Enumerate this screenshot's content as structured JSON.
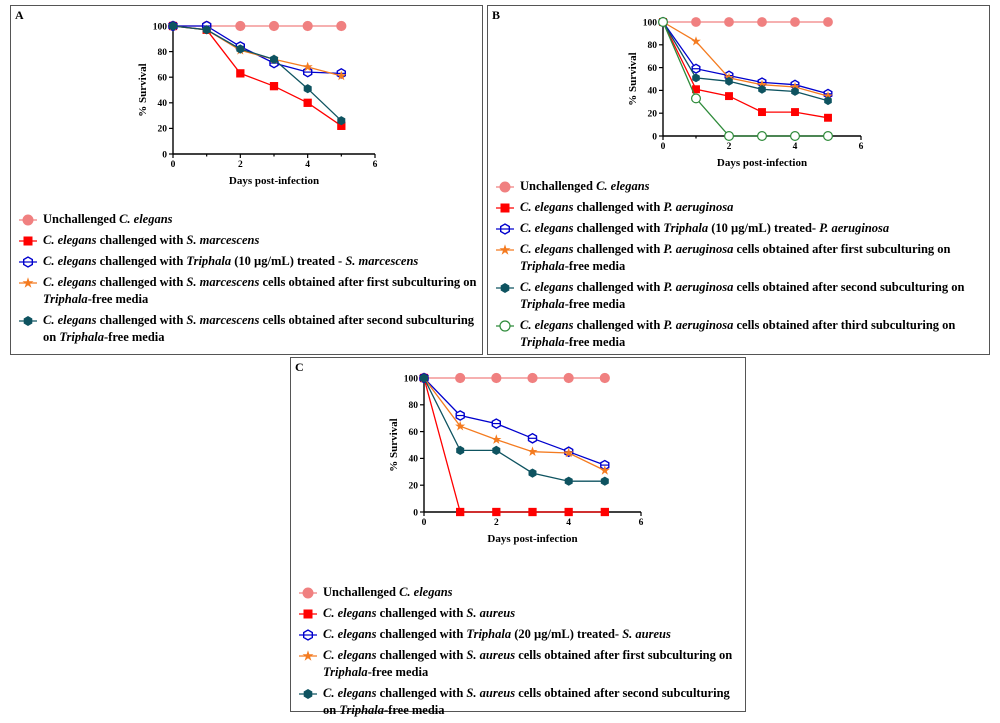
{
  "panels": [
    {
      "letter": "A",
      "chart_data": {
        "type": "line",
        "xlabel": "Days post-infection",
        "ylabel": "% Survival",
        "xlim": [
          0,
          6
        ],
        "ylim": [
          0,
          100
        ],
        "xticks": [
          "0",
          "2",
          "4",
          "6"
        ],
        "yticks": [
          "0",
          "20",
          "40",
          "60",
          "80",
          "100"
        ],
        "series": [
          {
            "key": "unchallenged",
            "x": [
              0,
              1,
              2,
              3,
              4,
              5
            ],
            "y": [
              100,
              100,
              100,
              100,
              100,
              100
            ]
          },
          {
            "key": "challenged",
            "x": [
              0,
              1,
              2,
              3,
              4,
              5
            ],
            "y": [
              100,
              97,
              63,
              53,
              40,
              22
            ]
          },
          {
            "key": "treated",
            "x": [
              0,
              1,
              2,
              3,
              4,
              5
            ],
            "y": [
              100,
              100,
              84,
              71,
              64,
              63
            ]
          },
          {
            "key": "first_sub",
            "x": [
              0,
              1,
              2,
              3,
              4,
              5
            ],
            "y": [
              100,
              97,
              81,
              74,
              68,
              61
            ]
          },
          {
            "key": "second_sub",
            "x": [
              0,
              1,
              2,
              3,
              4,
              5
            ],
            "y": [
              100,
              97,
              82,
              74,
              51,
              26
            ]
          }
        ]
      },
      "legend": [
        {
          "key": "unchallenged",
          "parts": [
            {
              "t": "Unchallenged "
            },
            {
              "t": "C. elegans",
              "i": true
            }
          ]
        },
        {
          "key": "challenged",
          "parts": [
            {
              "t": "C. elegans",
              "i": true
            },
            {
              "t": " challenged with "
            },
            {
              "t": "S. marcescens",
              "i": true
            }
          ]
        },
        {
          "key": "treated",
          "parts": [
            {
              "t": "C. elegans",
              "i": true
            },
            {
              "t": " challenged with "
            },
            {
              "t": "Triphala",
              "i": true
            },
            {
              "t": " (10 µg/mL) treated - "
            },
            {
              "t": "S. marcescens",
              "i": true
            }
          ]
        },
        {
          "key": "first_sub",
          "parts": [
            {
              "t": "C. elegans",
              "i": true
            },
            {
              "t": " challenged with "
            },
            {
              "t": "S. marcescens",
              "i": true
            },
            {
              "t": " cells obtained after first subculturing on "
            },
            {
              "t": "Triphala",
              "i": true
            },
            {
              "t": "-free media"
            }
          ]
        },
        {
          "key": "second_sub",
          "parts": [
            {
              "t": "C. elegans",
              "i": true
            },
            {
              "t": " challenged with "
            },
            {
              "t": "S. marcescens",
              "i": true
            },
            {
              "t": " cells obtained after second subculturing on "
            },
            {
              "t": "Triphala",
              "i": true
            },
            {
              "t": "-free media"
            }
          ]
        }
      ]
    },
    {
      "letter": "B",
      "chart_data": {
        "type": "line",
        "xlabel": "Days post-infection",
        "ylabel": "% Survival",
        "xlim": [
          0,
          6
        ],
        "ylim": [
          0,
          100
        ],
        "xticks": [
          "0",
          "2",
          "4",
          "6"
        ],
        "yticks": [
          "0",
          "20",
          "40",
          "60",
          "80",
          "100"
        ],
        "series": [
          {
            "key": "unchallenged",
            "x": [
              0,
              1,
              2,
              3,
              4,
              5
            ],
            "y": [
              100,
              100,
              100,
              100,
              100,
              100
            ]
          },
          {
            "key": "challenged",
            "x": [
              0,
              1,
              2,
              3,
              4,
              5
            ],
            "y": [
              100,
              41,
              35,
              21,
              21,
              16
            ]
          },
          {
            "key": "treated",
            "x": [
              0,
              1,
              2,
              3,
              4,
              5
            ],
            "y": [
              100,
              59,
              53,
              47,
              45,
              37
            ]
          },
          {
            "key": "first_sub",
            "x": [
              0,
              1,
              2,
              3,
              4,
              5
            ],
            "y": [
              100,
              83,
              51,
              45,
              43,
              35
            ]
          },
          {
            "key": "second_sub",
            "x": [
              0,
              1,
              2,
              3,
              4,
              5
            ],
            "y": [
              100,
              51,
              48,
              41,
              39,
              31
            ]
          },
          {
            "key": "third_sub",
            "x": [
              0,
              1,
              2,
              3,
              4,
              5
            ],
            "y": [
              100,
              33,
              0,
              0,
              0,
              0
            ]
          }
        ]
      },
      "legend": [
        {
          "key": "unchallenged",
          "parts": [
            {
              "t": "Unchallenged "
            },
            {
              "t": "C. elegans",
              "i": true
            }
          ]
        },
        {
          "key": "challenged",
          "parts": [
            {
              "t": "C. elegans",
              "i": true
            },
            {
              "t": " challenged with "
            },
            {
              "t": "P. aeruginosa",
              "i": true
            }
          ]
        },
        {
          "key": "treated",
          "parts": [
            {
              "t": "C. elegans",
              "i": true
            },
            {
              "t": " challenged with "
            },
            {
              "t": "Triphala",
              "i": true
            },
            {
              "t": " (10 µg/mL) treated- "
            },
            {
              "t": "P. aeruginosa",
              "i": true
            }
          ]
        },
        {
          "key": "first_sub",
          "parts": [
            {
              "t": "C. elegans",
              "i": true
            },
            {
              "t": " challenged with "
            },
            {
              "t": "P. aeruginosa",
              "i": true
            },
            {
              "t": " cells obtained after first subculturing on "
            },
            {
              "t": "Triphala",
              "i": true
            },
            {
              "t": "-free media"
            }
          ]
        },
        {
          "key": "second_sub",
          "parts": [
            {
              "t": "C. elegans",
              "i": true
            },
            {
              "t": " challenged with "
            },
            {
              "t": "P. aeruginosa",
              "i": true
            },
            {
              "t": " cells obtained after second subculturing on "
            },
            {
              "t": "Triphala",
              "i": true
            },
            {
              "t": "-free media"
            }
          ]
        },
        {
          "key": "third_sub",
          "parts": [
            {
              "t": "C. elegans",
              "i": true
            },
            {
              "t": " challenged with "
            },
            {
              "t": "P. aeruginosa",
              "i": true
            },
            {
              "t": " cells obtained after third subculturing on "
            },
            {
              "t": "Triphala",
              "i": true
            },
            {
              "t": "-free media"
            }
          ]
        }
      ]
    },
    {
      "letter": "C",
      "chart_data": {
        "type": "line",
        "xlabel": "Days post-infection",
        "ylabel": "% Survival",
        "xlim": [
          0,
          6
        ],
        "ylim": [
          0,
          100
        ],
        "xticks": [
          "0",
          "2",
          "4",
          "6"
        ],
        "yticks": [
          "0",
          "20",
          "40",
          "60",
          "80",
          "100"
        ],
        "series": [
          {
            "key": "unchallenged",
            "x": [
              0,
              1,
              2,
              3,
              4,
              5
            ],
            "y": [
              100,
              100,
              100,
              100,
              100,
              100
            ]
          },
          {
            "key": "challenged",
            "x": [
              0,
              1,
              2,
              3,
              4,
              5
            ],
            "y": [
              100,
              0,
              0,
              0,
              0,
              0
            ]
          },
          {
            "key": "treated",
            "x": [
              0,
              1,
              2,
              3,
              4,
              5
            ],
            "y": [
              100,
              72,
              66,
              55,
              45,
              35
            ]
          },
          {
            "key": "first_sub",
            "x": [
              0,
              1,
              2,
              3,
              4,
              5
            ],
            "y": [
              100,
              64,
              54,
              45,
              44,
              31
            ]
          },
          {
            "key": "second_sub",
            "x": [
              0,
              1,
              2,
              3,
              4,
              5
            ],
            "y": [
              100,
              46,
              46,
              29,
              23,
              23
            ]
          }
        ]
      },
      "legend": [
        {
          "key": "unchallenged",
          "parts": [
            {
              "t": "Unchallenged "
            },
            {
              "t": "C. elegans",
              "i": true
            }
          ]
        },
        {
          "key": "challenged",
          "parts": [
            {
              "t": "C. elegans",
              "i": true
            },
            {
              "t": " challenged with "
            },
            {
              "t": "S. aureus",
              "i": true
            }
          ]
        },
        {
          "key": "treated",
          "parts": [
            {
              "t": "C. elegans",
              "i": true
            },
            {
              "t": " challenged with "
            },
            {
              "t": "Triphala",
              "i": true
            },
            {
              "t": " (20 µg/mL) treated- "
            },
            {
              "t": "S. aureus",
              "i": true
            }
          ]
        },
        {
          "key": "first_sub",
          "parts": [
            {
              "t": "C. elegans",
              "i": true
            },
            {
              "t": " challenged with "
            },
            {
              "t": "S. aureus",
              "i": true
            },
            {
              "t": " cells obtained after first subculturing on "
            },
            {
              "t": "Triphala",
              "i": true
            },
            {
              "t": "-free media"
            }
          ]
        },
        {
          "key": "second_sub",
          "parts": [
            {
              "t": "C. elegans",
              "i": true
            },
            {
              "t": " challenged with "
            },
            {
              "t": "S. aureus",
              "i": true
            },
            {
              "t": " cells obtained after second subculturing on "
            },
            {
              "t": "Triphala",
              "i": true
            },
            {
              "t": "-free media"
            }
          ]
        }
      ]
    }
  ],
  "styles": {
    "unchallenged": {
      "marker": "circle-filled",
      "color": "#f08080"
    },
    "challenged": {
      "marker": "square-filled",
      "color": "#ff0000"
    },
    "treated": {
      "marker": "hexagon-open",
      "color": "#0000cd"
    },
    "first_sub": {
      "marker": "star",
      "color": "#f47b20"
    },
    "second_sub": {
      "marker": "hexagon-filled",
      "color": "#0e5360"
    },
    "third_sub": {
      "marker": "circle-open",
      "color": "#2e8b3a"
    }
  }
}
